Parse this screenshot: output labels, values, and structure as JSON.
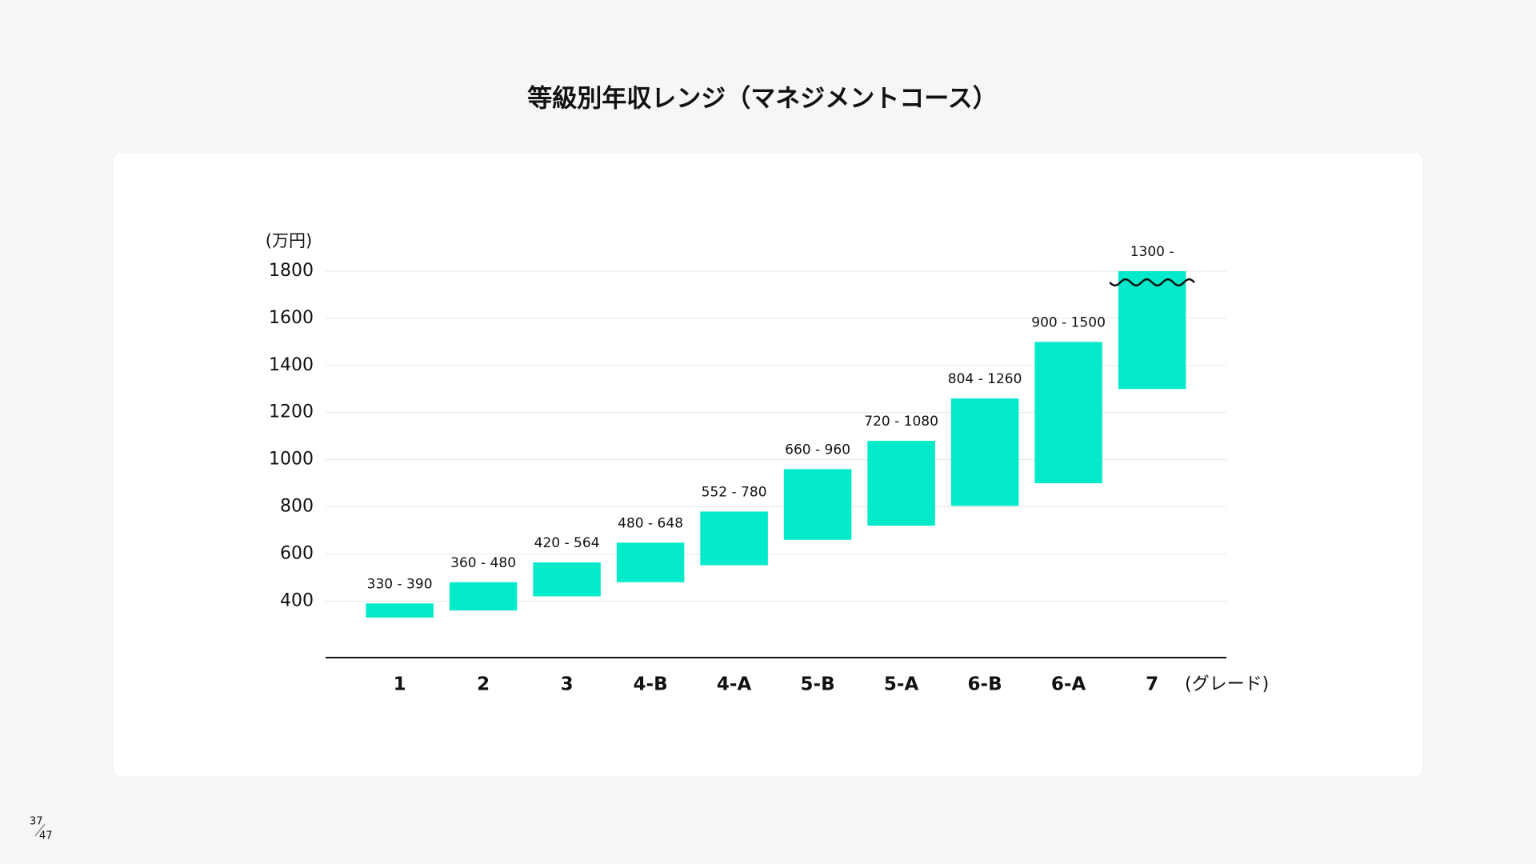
{
  "chart_data": {
    "type": "range-bar",
    "title": "等級別年収レンジ（マネジメントコース）",
    "y_label": "(万円)",
    "x_label": "(グレード)",
    "categories": [
      "1",
      "2",
      "3",
      "4-B",
      "4-A",
      "5-B",
      "5-A",
      "6-B",
      "6-A",
      "7"
    ],
    "low": [
      330,
      360,
      420,
      480,
      552,
      660,
      720,
      804,
      900,
      1300
    ],
    "high": [
      390,
      480,
      564,
      648,
      780,
      960,
      1080,
      1260,
      1500,
      null
    ],
    "value_labels": [
      "330 - 390",
      "360 - 480",
      "420 - 564",
      "480 - 648",
      "552 - 780",
      "660 - 960",
      "720 - 1080",
      "804 - 1260",
      "900 - 1500",
      "1300 -"
    ],
    "color": "#03eacb",
    "ylim": [
      160,
      1800
    ],
    "yticks": [
      400,
      600,
      800,
      1000,
      1200,
      1400,
      1600,
      1800
    ],
    "grid": true
  },
  "page": {
    "current": 37,
    "total": 47
  }
}
